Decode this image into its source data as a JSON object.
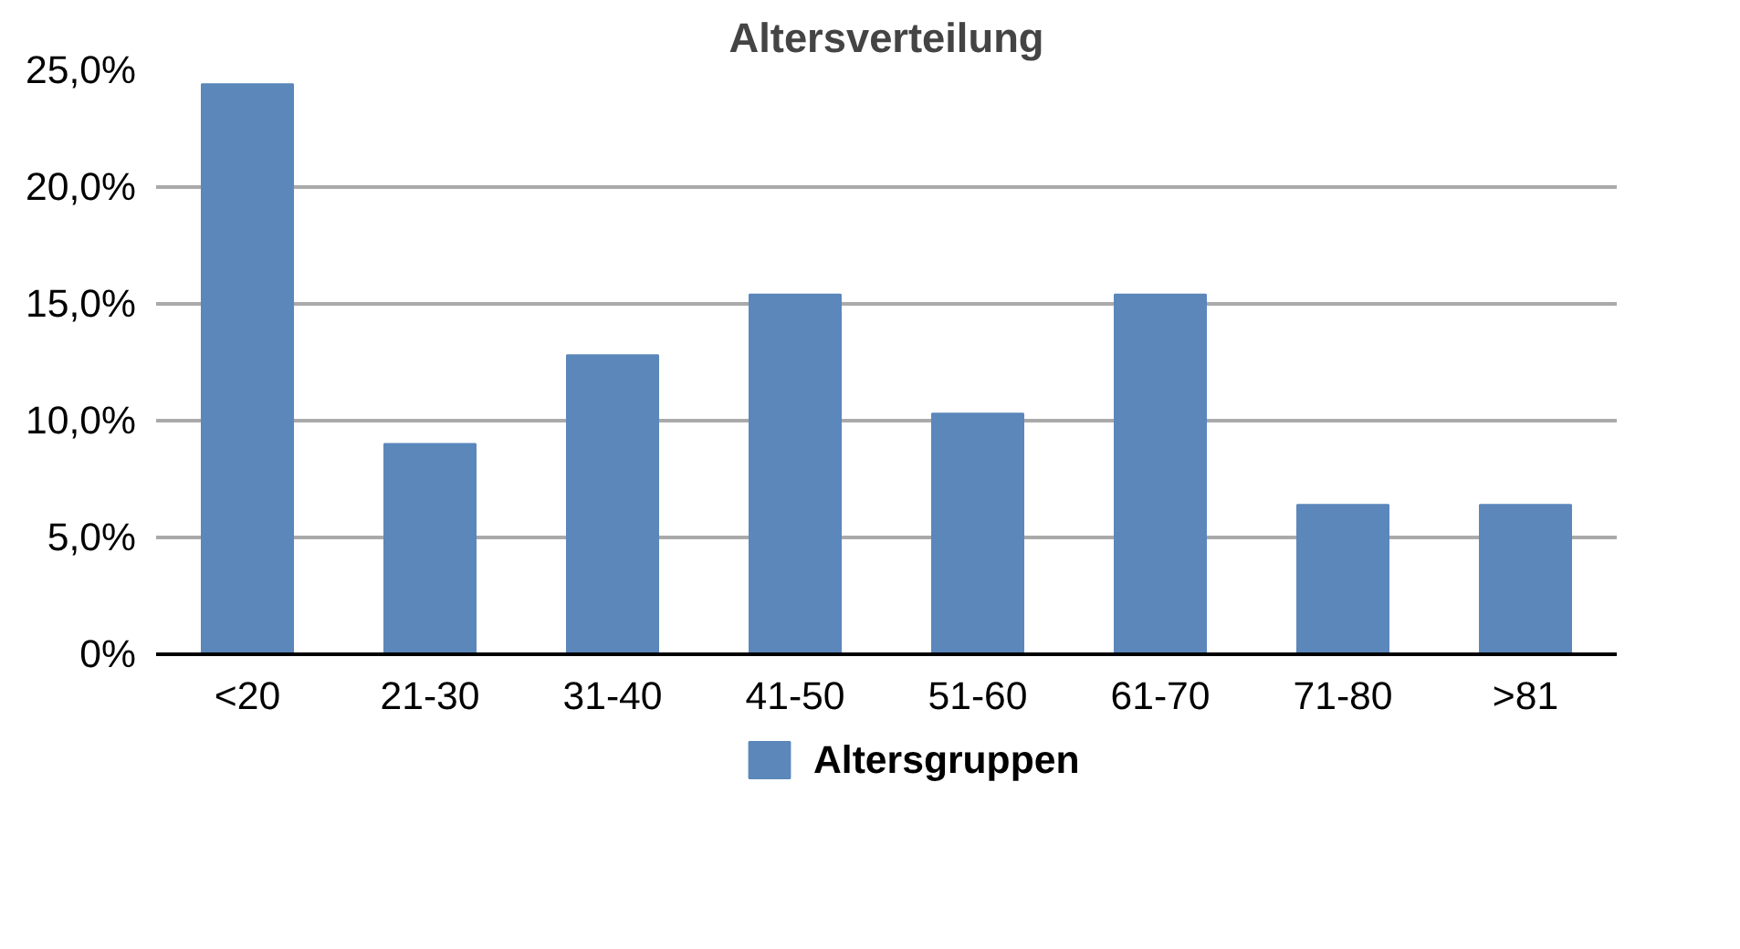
{
  "chart_data": {
    "type": "bar",
    "title": "Altersverteilung",
    "categories": [
      "<20",
      "21-30",
      "31-40",
      "41-50",
      "51-60",
      "61-70",
      "71-80",
      ">81"
    ],
    "series": [
      {
        "name": "Altersgruppen",
        "color": "#5b87bb",
        "values": [
          24.4,
          9.0,
          12.8,
          15.4,
          10.3,
          15.4,
          6.4,
          6.4
        ]
      }
    ],
    "ylim": [
      0,
      25
    ],
    "yticks": [
      {
        "value": 0,
        "label": "0%"
      },
      {
        "value": 5,
        "label": "5,0%"
      },
      {
        "value": 10,
        "label": "10,0%"
      },
      {
        "value": 15,
        "label": "15,0%"
      },
      {
        "value": 20,
        "label": "20,0%"
      },
      {
        "value": 25,
        "label": "25,0%"
      }
    ],
    "grid": "y",
    "legend": "bottom"
  }
}
